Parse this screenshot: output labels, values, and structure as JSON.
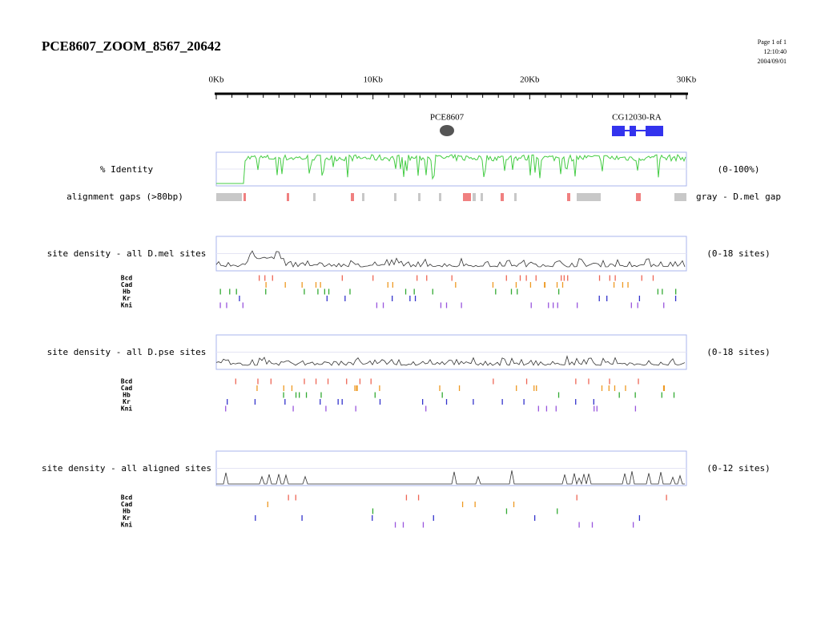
{
  "header": {
    "title": "PCE8607_ZOOM_8567_20642",
    "page": "Page 1 of 1",
    "time": "12:10:40",
    "date": "2004/09/01"
  },
  "ruler": {
    "labels": [
      "0Kb",
      "10Kb",
      "20Kb",
      "30Kb"
    ]
  },
  "genes": [
    "PCE8607",
    "CG12030-RA"
  ],
  "identity": {
    "label": "% Identity",
    "range": "(0-100%)"
  },
  "gaps": {
    "label": "alignment gaps (>80bp)",
    "legend": "gray - D.mel gap"
  },
  "density_tracks": [
    {
      "label": "site density - all D.mel sites",
      "range": "(0-18 sites)"
    },
    {
      "label": "site density - all D.pse sites",
      "range": "(0-18 sites)"
    },
    {
      "label": "site density - all aligned sites",
      "range": "(0-12 sites)"
    }
  ],
  "sites": [
    "Bcd",
    "Cad",
    "Hb",
    "Kr",
    "Kni"
  ]
}
